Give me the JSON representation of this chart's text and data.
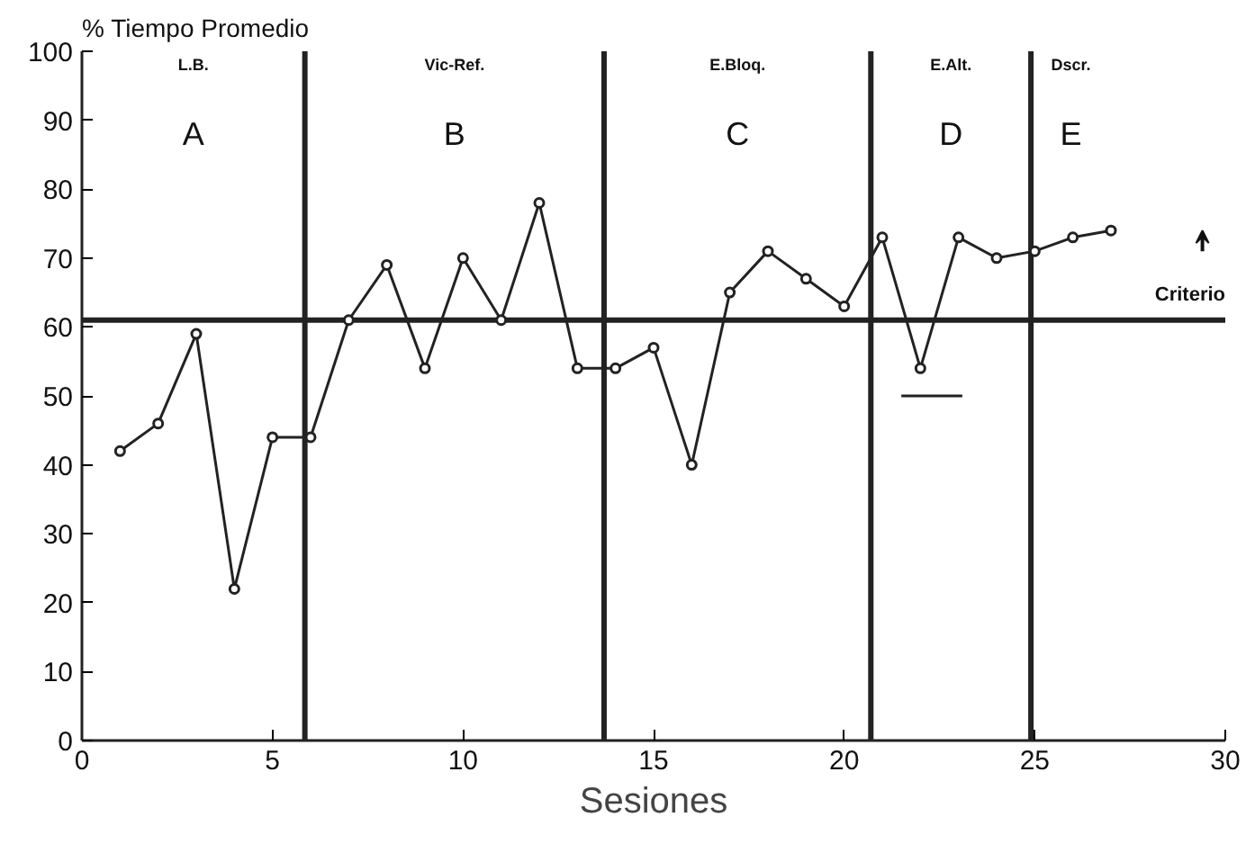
{
  "chart_data": {
    "type": "line",
    "xlabel": "Sesiones",
    "ylabel": "% Tiempo Promedio",
    "xlim": [
      0,
      30
    ],
    "ylim": [
      0,
      100
    ],
    "xticks": [
      0,
      5,
      10,
      15,
      20,
      25,
      30
    ],
    "yticks": [
      0,
      10,
      20,
      30,
      40,
      50,
      60,
      70,
      80,
      90,
      100
    ],
    "grid": false,
    "marker": "circle",
    "line_style": "solid",
    "series": [
      {
        "color": "#222222",
        "x": [
          1,
          2,
          3,
          4,
          5,
          6,
          7,
          8,
          9,
          10,
          11,
          12,
          13,
          14,
          15,
          16,
          17,
          18,
          19,
          20,
          21,
          22,
          23,
          24,
          25,
          26,
          27
        ],
        "values": [
          42,
          46,
          59,
          22,
          44,
          44,
          61,
          69,
          54,
          70,
          61,
          78,
          54,
          54,
          57,
          40,
          65,
          71,
          67,
          63,
          73,
          54,
          73,
          70,
          71,
          73,
          74
        ]
      },
      {
        "color": "#222222",
        "type": "line",
        "marker": "none",
        "x": [
          21.5,
          23.1
        ],
        "values": [
          50,
          50
        ]
      }
    ],
    "ref_lines": [
      {
        "axis": "y",
        "value": 61,
        "label": "Criterio",
        "color": "#222222"
      },
      {
        "axis": "x",
        "value": 5.85,
        "color": "#222222"
      },
      {
        "axis": "x",
        "value": 13.7,
        "color": "#222222"
      },
      {
        "axis": "x",
        "value": 20.7,
        "color": "#222222"
      },
      {
        "axis": "x",
        "value": 24.9,
        "color": "#222222"
      }
    ],
    "annotations": [
      "A",
      "B",
      "C",
      "D",
      "E",
      "L.B.",
      "Vic-Ref.",
      "E.Bloq.",
      "E.Alt.",
      "Dscr."
    ]
  }
}
